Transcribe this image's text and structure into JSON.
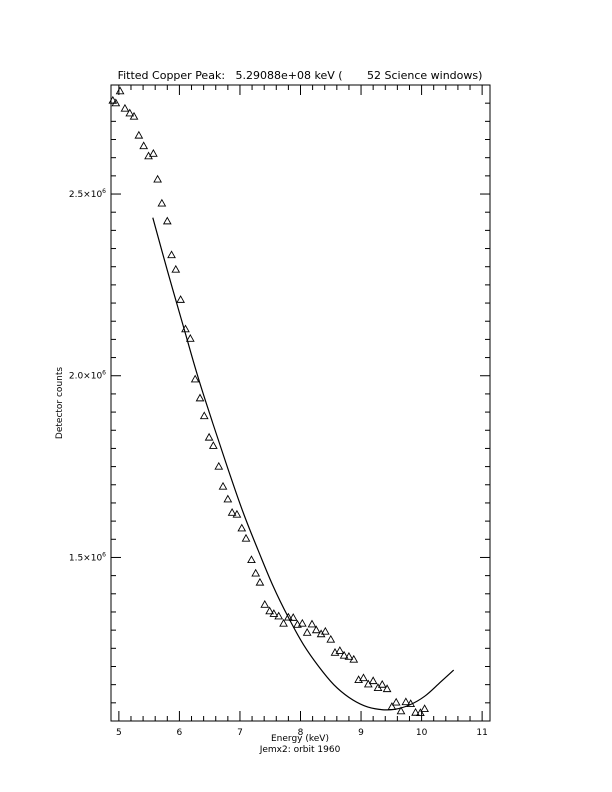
{
  "chart_data": {
    "type": "scatter",
    "title": "Fitted Copper Peak:   5.29088e+08 keV (       52 Science windows)",
    "xlabel": "Energy (keV)",
    "ylabel": "Detector counts",
    "subtitle": "Jemx2: orbit 1960",
    "xlim": [
      4.87,
      11.13
    ],
    "ylim": [
      1050000,
      2800000
    ],
    "x_ticks": [
      5,
      6,
      7,
      8,
      9,
      10,
      11
    ],
    "x_tick_labels": [
      "5",
      "6",
      "7",
      "8",
      "9",
      "10",
      "11"
    ],
    "y_ticks": [
      1500000,
      2000000,
      2500000
    ],
    "y_tick_labels": [
      {
        "mantissa": "1.5×10",
        "exp": "6"
      },
      {
        "mantissa": "2.0×10",
        "exp": "6"
      },
      {
        "mantissa": "2.5×10",
        "exp": "6"
      }
    ],
    "grid": false,
    "legend": "none",
    "points": [
      [
        4.9,
        2757000
      ],
      [
        4.95,
        2750000
      ],
      [
        5.02,
        2783000
      ],
      [
        5.1,
        2735000
      ],
      [
        5.18,
        2722000
      ],
      [
        5.25,
        2713000
      ],
      [
        5.33,
        2661000
      ],
      [
        5.41,
        2632000
      ],
      [
        5.49,
        2604000
      ],
      [
        5.57,
        2611000
      ],
      [
        5.64,
        2540000
      ],
      [
        5.71,
        2474000
      ],
      [
        5.8,
        2425000
      ],
      [
        5.87,
        2332000
      ],
      [
        5.94,
        2292000
      ],
      [
        6.02,
        2209000
      ],
      [
        6.1,
        2128000
      ],
      [
        6.18,
        2102000
      ],
      [
        6.26,
        1990000
      ],
      [
        6.34,
        1938000
      ],
      [
        6.41,
        1889000
      ],
      [
        6.49,
        1830000
      ],
      [
        6.56,
        1807000
      ],
      [
        6.65,
        1750000
      ],
      [
        6.72,
        1695000
      ],
      [
        6.8,
        1660000
      ],
      [
        6.87,
        1623000
      ],
      [
        6.95,
        1618000
      ],
      [
        7.03,
        1580000
      ],
      [
        7.1,
        1552000
      ],
      [
        7.19,
        1493000
      ],
      [
        7.26,
        1456000
      ],
      [
        7.33,
        1431000
      ],
      [
        7.41,
        1370000
      ],
      [
        7.49,
        1352000
      ],
      [
        7.56,
        1345000
      ],
      [
        7.64,
        1338000
      ],
      [
        7.72,
        1318000
      ],
      [
        7.8,
        1335000
      ],
      [
        7.88,
        1334000
      ],
      [
        7.95,
        1315000
      ],
      [
        8.03,
        1318000
      ],
      [
        8.11,
        1293000
      ],
      [
        8.19,
        1316000
      ],
      [
        8.26,
        1300000
      ],
      [
        8.34,
        1289000
      ],
      [
        8.41,
        1296000
      ],
      [
        8.5,
        1274000
      ],
      [
        8.57,
        1238000
      ],
      [
        8.65,
        1243000
      ],
      [
        8.72,
        1230000
      ],
      [
        8.8,
        1227000
      ],
      [
        8.88,
        1219000
      ],
      [
        8.96,
        1163000
      ],
      [
        9.04,
        1168000
      ],
      [
        9.12,
        1151000
      ],
      [
        9.2,
        1160000
      ],
      [
        9.28,
        1141000
      ],
      [
        9.35,
        1150000
      ],
      [
        9.43,
        1138000
      ],
      [
        9.51,
        1089000
      ],
      [
        9.58,
        1101000
      ],
      [
        9.66,
        1077000
      ],
      [
        9.74,
        1102000
      ],
      [
        9.82,
        1097000
      ],
      [
        9.9,
        1073000
      ],
      [
        9.98,
        1072000
      ],
      [
        10.05,
        1083000
      ]
    ],
    "fit_curve": [
      [
        5.56,
        2435000
      ],
      [
        5.8,
        2290000
      ],
      [
        6.05,
        2145000
      ],
      [
        6.3,
        2000000
      ],
      [
        6.55,
        1870000
      ],
      [
        6.8,
        1745000
      ],
      [
        7.05,
        1625000
      ],
      [
        7.3,
        1520000
      ],
      [
        7.55,
        1420000
      ],
      [
        7.8,
        1335000
      ],
      [
        8.05,
        1260000
      ],
      [
        8.3,
        1200000
      ],
      [
        8.55,
        1150000
      ],
      [
        8.8,
        1115000
      ],
      [
        9.05,
        1092000
      ],
      [
        9.3,
        1082000
      ],
      [
        9.55,
        1082000
      ],
      [
        9.8,
        1094000
      ],
      [
        10.05,
        1118000
      ],
      [
        10.3,
        1155000
      ],
      [
        10.53,
        1190000
      ]
    ]
  }
}
